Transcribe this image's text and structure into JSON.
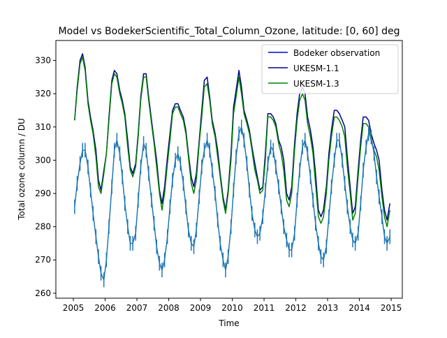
{
  "chart_data": {
    "type": "line",
    "title": "Model vs BodekerScientific_Total_Column_Ozone, latitude: [0, 60] deg",
    "xlabel": "Time",
    "ylabel": "Total ozone column / DU",
    "xlim": [
      2004.45,
      2015.35
    ],
    "ylim": [
      258.5,
      336.0
    ],
    "xticks": [
      2005,
      2006,
      2007,
      2008,
      2009,
      2010,
      2011,
      2012,
      2013,
      2014,
      2015
    ],
    "yticks": [
      260,
      270,
      280,
      290,
      300,
      310,
      320,
      330
    ],
    "grid": false,
    "legend_position": "top-right",
    "series": [
      {
        "name": "Bodeker observation",
        "legend_color": "#0000cc",
        "plot_color": "#1f77b4",
        "error_bars": true,
        "x": [
          2005.04,
          2005.12,
          2005.21,
          2005.29,
          2005.37,
          2005.46,
          2005.54,
          2005.62,
          2005.71,
          2005.79,
          2005.87,
          2005.96,
          2006.04,
          2006.12,
          2006.21,
          2006.29,
          2006.37,
          2006.46,
          2006.54,
          2006.62,
          2006.71,
          2006.79,
          2006.87,
          2006.96,
          2007.04,
          2007.12,
          2007.21,
          2007.29,
          2007.37,
          2007.46,
          2007.54,
          2007.62,
          2007.71,
          2007.79,
          2007.87,
          2007.96,
          2008.04,
          2008.12,
          2008.21,
          2008.29,
          2008.37,
          2008.46,
          2008.54,
          2008.62,
          2008.71,
          2008.79,
          2008.87,
          2008.96,
          2009.04,
          2009.12,
          2009.21,
          2009.29,
          2009.37,
          2009.46,
          2009.54,
          2009.62,
          2009.71,
          2009.79,
          2009.87,
          2009.96,
          2010.04,
          2010.12,
          2010.21,
          2010.29,
          2010.37,
          2010.46,
          2010.54,
          2010.62,
          2010.71,
          2010.79,
          2010.87,
          2010.96,
          2011.04,
          2011.12,
          2011.21,
          2011.29,
          2011.37,
          2011.46,
          2011.54,
          2011.62,
          2011.71,
          2011.79,
          2011.87,
          2011.96,
          2012.04,
          2012.12,
          2012.21,
          2012.29,
          2012.37,
          2012.46,
          2012.54,
          2012.62,
          2012.71,
          2012.79,
          2012.87,
          2012.96,
          2013.04,
          2013.12,
          2013.21,
          2013.29,
          2013.37,
          2013.46,
          2013.54,
          2013.62,
          2013.71,
          2013.79,
          2013.87,
          2013.96,
          2014.04,
          2014.12,
          2014.21,
          2014.29,
          2014.37,
          2014.46,
          2014.54,
          2014.62,
          2014.71,
          2014.79,
          2014.87,
          2014.96
        ],
        "values": [
          286,
          293,
          299,
          303,
          303,
          298,
          291,
          284,
          277,
          271,
          266,
          264,
          270,
          280,
          292,
          303,
          306,
          302,
          295,
          287,
          280,
          275,
          275,
          278,
          288,
          298,
          305,
          303,
          296,
          288,
          281,
          274,
          269,
          267,
          270,
          277,
          286,
          294,
          300,
          302,
          299,
          293,
          286,
          279,
          275,
          274,
          279,
          289,
          298,
          303,
          306,
          303,
          297,
          290,
          282,
          275,
          270,
          267,
          271,
          280,
          291,
          301,
          308,
          310,
          306,
          299,
          291,
          284,
          279,
          277,
          278,
          283,
          291,
          299,
          304,
          303,
          298,
          292,
          286,
          280,
          276,
          273,
          273,
          278,
          288,
          297,
          304,
          306,
          302,
          295,
          288,
          281,
          275,
          271,
          270,
          274,
          283,
          292,
          300,
          306,
          306,
          300,
          293,
          286,
          280,
          276,
          275,
          278,
          287,
          297,
          304,
          308,
          307,
          302,
          295,
          289,
          283,
          277,
          275,
          277
        ]
      },
      {
        "name": "UKESM-1.1",
        "legend_color": "#00008b",
        "x": [
          2005.04,
          2005.12,
          2005.21,
          2005.29,
          2005.37,
          2005.46,
          2005.54,
          2005.62,
          2005.71,
          2005.79,
          2005.87,
          2005.96,
          2006.04,
          2006.12,
          2006.21,
          2006.29,
          2006.37,
          2006.46,
          2006.54,
          2006.62,
          2006.71,
          2006.79,
          2006.87,
          2006.96,
          2007.04,
          2007.12,
          2007.21,
          2007.29,
          2007.37,
          2007.46,
          2007.54,
          2007.62,
          2007.71,
          2007.79,
          2007.87,
          2007.96,
          2008.04,
          2008.12,
          2008.21,
          2008.29,
          2008.37,
          2008.46,
          2008.54,
          2008.62,
          2008.71,
          2008.79,
          2008.87,
          2008.96,
          2009.04,
          2009.12,
          2009.21,
          2009.29,
          2009.37,
          2009.46,
          2009.54,
          2009.62,
          2009.71,
          2009.79,
          2009.87,
          2009.96,
          2010.04,
          2010.12,
          2010.21,
          2010.29,
          2010.37,
          2010.46,
          2010.54,
          2010.62,
          2010.71,
          2010.79,
          2010.87,
          2010.96,
          2011.04,
          2011.12,
          2011.21,
          2011.29,
          2011.37,
          2011.46,
          2011.54,
          2011.62,
          2011.71,
          2011.79,
          2011.87,
          2011.96,
          2012.04,
          2012.12,
          2012.21,
          2012.29,
          2012.37,
          2012.46,
          2012.54,
          2012.62,
          2012.71,
          2012.79,
          2012.87,
          2012.96,
          2013.04,
          2013.12,
          2013.21,
          2013.29,
          2013.37,
          2013.46,
          2013.54,
          2013.62,
          2013.71,
          2013.79,
          2013.87,
          2013.96,
          2014.04,
          2014.12,
          2014.21,
          2014.29,
          2014.37,
          2014.46,
          2014.54,
          2014.62,
          2014.71,
          2014.79,
          2014.87,
          2014.96
        ],
        "values": [
          312,
          322,
          330,
          332,
          328,
          318,
          313,
          309,
          303,
          294,
          291,
          297,
          302,
          313,
          324,
          327,
          326,
          321,
          318,
          314,
          306,
          298,
          296,
          299,
          308,
          319,
          326,
          326,
          319,
          312,
          306,
          300,
          291,
          287,
          292,
          301,
          308,
          315,
          317,
          317,
          315,
          313,
          309,
          302,
          295,
          292,
          296,
          306,
          315,
          324,
          325,
          319,
          312,
          308,
          303,
          296,
          289,
          285,
          291,
          302,
          316,
          321,
          327,
          322,
          315,
          312,
          309,
          304,
          299,
          295,
          291,
          292,
          302,
          314,
          314,
          313,
          311,
          306,
          304,
          300,
          290,
          288,
          292,
          305,
          314,
          320,
          322,
          320,
          313,
          309,
          304,
          296,
          285,
          283,
          285,
          292,
          302,
          309,
          315,
          315,
          314,
          312,
          310,
          301,
          292,
          284,
          286,
          297,
          306,
          313,
          313,
          312,
          308,
          305,
          303,
          300,
          291,
          285,
          282,
          287
        ]
      },
      {
        "name": "UKESM-1.3",
        "legend_color": "#008000",
        "x": [
          2005.04,
          2005.12,
          2005.21,
          2005.29,
          2005.37,
          2005.46,
          2005.54,
          2005.62,
          2005.71,
          2005.79,
          2005.87,
          2005.96,
          2006.04,
          2006.12,
          2006.21,
          2006.29,
          2006.37,
          2006.46,
          2006.54,
          2006.62,
          2006.71,
          2006.79,
          2006.87,
          2006.96,
          2007.04,
          2007.12,
          2007.21,
          2007.29,
          2007.37,
          2007.46,
          2007.54,
          2007.62,
          2007.71,
          2007.79,
          2007.87,
          2007.96,
          2008.04,
          2008.12,
          2008.21,
          2008.29,
          2008.37,
          2008.46,
          2008.54,
          2008.62,
          2008.71,
          2008.79,
          2008.87,
          2008.96,
          2009.04,
          2009.12,
          2009.21,
          2009.29,
          2009.37,
          2009.46,
          2009.54,
          2009.62,
          2009.71,
          2009.79,
          2009.87,
          2009.96,
          2010.04,
          2010.12,
          2010.21,
          2010.29,
          2010.37,
          2010.46,
          2010.54,
          2010.62,
          2010.71,
          2010.79,
          2010.87,
          2010.96,
          2011.04,
          2011.12,
          2011.21,
          2011.29,
          2011.37,
          2011.46,
          2011.54,
          2011.62,
          2011.71,
          2011.79,
          2011.87,
          2011.96,
          2012.04,
          2012.12,
          2012.21,
          2012.29,
          2012.37,
          2012.46,
          2012.54,
          2012.62,
          2012.71,
          2012.79,
          2012.87,
          2012.96,
          2013.04,
          2013.12,
          2013.21,
          2013.29,
          2013.37,
          2013.46,
          2013.54,
          2013.62,
          2013.71,
          2013.79,
          2013.87,
          2013.96,
          2014.04,
          2014.12,
          2014.21,
          2014.29,
          2014.37,
          2014.46,
          2014.54,
          2014.62,
          2014.71,
          2014.79,
          2014.87,
          2014.96
        ],
        "values": [
          312,
          321,
          329,
          331,
          327,
          317,
          312,
          308,
          301,
          292,
          290,
          296,
          302,
          312,
          323,
          326,
          325,
          320,
          317,
          313,
          304,
          297,
          295,
          298,
          307,
          318,
          325,
          325,
          318,
          311,
          305,
          298,
          290,
          285,
          290,
          299,
          306,
          314,
          316,
          316,
          314,
          312,
          308,
          301,
          293,
          290,
          294,
          305,
          313,
          322,
          323,
          318,
          311,
          307,
          301,
          295,
          288,
          284,
          290,
          300,
          314,
          319,
          325,
          320,
          314,
          311,
          308,
          303,
          297,
          294,
          290,
          291,
          300,
          313,
          313,
          312,
          310,
          305,
          302,
          297,
          288,
          286,
          290,
          303,
          312,
          318,
          320,
          318,
          311,
          307,
          302,
          293,
          283,
          281,
          283,
          290,
          300,
          307,
          313,
          313,
          312,
          310,
          307,
          298,
          290,
          282,
          284,
          295,
          304,
          311,
          311,
          310,
          306,
          303,
          301,
          297,
          289,
          283,
          280,
          285
        ]
      }
    ]
  }
}
